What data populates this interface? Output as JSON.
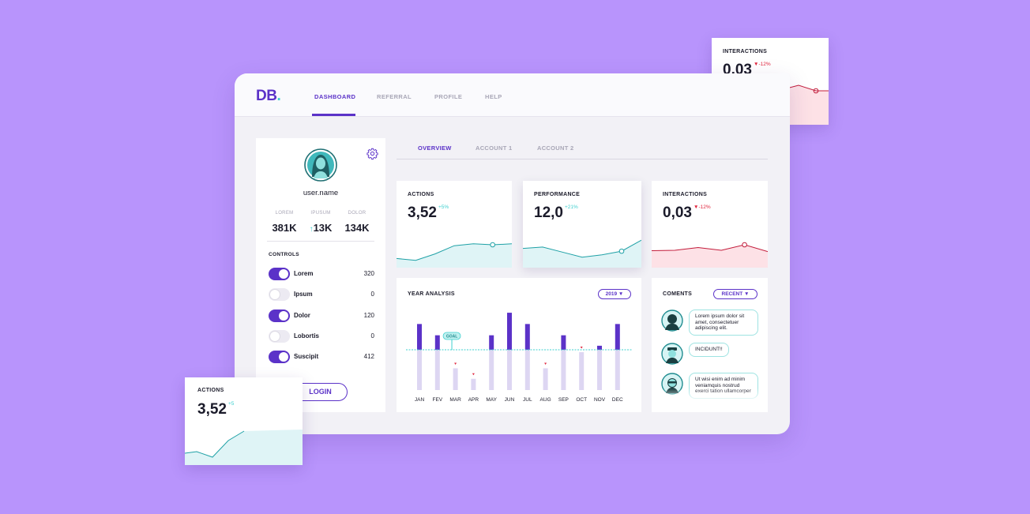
{
  "brand": {
    "logo_text": "DB",
    "logo_dot": "."
  },
  "nav": {
    "items": [
      "DASHBOARD",
      "REFERRAL",
      "PROFILE",
      "HELP"
    ],
    "active": "DASHBOARD"
  },
  "subtabs": {
    "items": [
      "OVERVIEW",
      "ACCOUNT 1",
      "ACCOUNT 2"
    ],
    "active": "OVERVIEW"
  },
  "profile": {
    "username": "user.name",
    "stats": [
      {
        "label": "LOREM",
        "value": "381K"
      },
      {
        "label": "IPUSUM",
        "value": "13K",
        "arrow": "↑"
      },
      {
        "label": "DOLOR",
        "value": "134K"
      }
    ],
    "controls_title": "CONTROLS",
    "controls": [
      {
        "label": "Lorem",
        "value": "320",
        "on": true
      },
      {
        "label": "Ipsum",
        "value": "0",
        "on": false
      },
      {
        "label": "Dolor",
        "value": "120",
        "on": true
      },
      {
        "label": "Lobortis",
        "value": "0",
        "on": false
      },
      {
        "label": "Suscipit",
        "value": "412",
        "on": true
      }
    ],
    "login_label": "LOGIN"
  },
  "metrics": [
    {
      "title": "ACTIONS",
      "value": "3,52",
      "delta": "+5%",
      "trend": "up"
    },
    {
      "title": "PERFORMANCE",
      "value": "12,0",
      "delta": "+21%",
      "trend": "up"
    },
    {
      "title": "INTERACTIONS",
      "value": "0,03",
      "delta": "-12%",
      "trend": "down"
    }
  ],
  "floating": {
    "top_right": {
      "title": "INTERACTIONS",
      "value": "0,03",
      "delta": "-12%"
    },
    "bottom_left": {
      "title": "ACTIONS",
      "value": "3,52",
      "delta": "+5"
    }
  },
  "year_analysis": {
    "title": "YEAR ANALYSIS",
    "year_select": "2019",
    "goal_label": "GOAL"
  },
  "comments": {
    "title": "COMENTS",
    "filter": "RECENT",
    "items": [
      {
        "text": "Lorem ipsum dolor sit amet, consectetuer adipiscing elit."
      },
      {
        "text": "INCIDUNT!!"
      },
      {
        "text": "Ut wisi enim ad minim veniamquis nostrud exerci tation ullamcorper"
      }
    ]
  },
  "colors": {
    "accent": "#5b32c8",
    "teal": "#3fd0cf",
    "red": "#e0243c",
    "background": "#b894fc"
  },
  "chart_data": [
    {
      "type": "bar",
      "title": "YEAR ANALYSIS",
      "categories": [
        "JAN",
        "FEV",
        "MAR",
        "APR",
        "MAY",
        "JUN",
        "JUL",
        "AUG",
        "SEP",
        "OCT",
        "NOV",
        "DEC"
      ],
      "values": [
        82,
        68,
        27,
        14,
        68,
        96,
        82,
        27,
        68,
        47,
        55,
        82
      ],
      "goal": 50,
      "ylim": [
        0,
        100
      ]
    },
    {
      "type": "line",
      "title": "ACTIONS",
      "values": [
        20,
        16,
        30,
        48,
        52,
        50,
        52
      ],
      "ylim": [
        0,
        100
      ]
    },
    {
      "type": "line",
      "title": "PERFORMANCE",
      "values": [
        42,
        45,
        34,
        23,
        28,
        36,
        60
      ],
      "ylim": [
        0,
        100
      ]
    },
    {
      "type": "line",
      "title": "INTERACTIONS",
      "values": [
        37,
        38,
        44,
        38,
        50,
        35
      ],
      "ylim": [
        0,
        100
      ]
    }
  ]
}
